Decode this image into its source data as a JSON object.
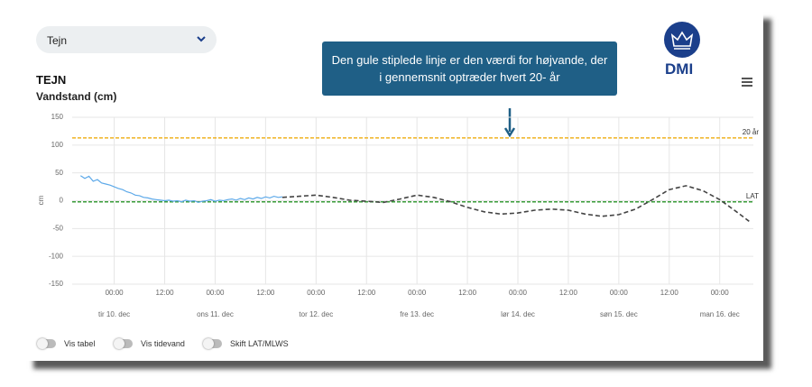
{
  "dropdown": {
    "label": "Tejn"
  },
  "station": "TEJN",
  "tooltip": "Den gule stiplede linje er den værdi for højvande, der i gennemsnit optræder hvert 20- år",
  "logo": "DMI",
  "toggles": [
    "Vis tabel",
    "Vis tidevand",
    "Skift LAT/MLWS"
  ],
  "chart_data": {
    "type": "line",
    "title": "Vandstand (cm)",
    "y_label": "cm",
    "xlim": [
      -10,
      152
    ],
    "ylim": [
      -150,
      150
    ],
    "yticks": [
      -150,
      -100,
      -50,
      0,
      50,
      100,
      150
    ],
    "xticks": [
      {
        "value": 0,
        "label": "00:00"
      },
      {
        "value": 12,
        "label": "12:00"
      },
      {
        "value": 24,
        "label": "00:00"
      },
      {
        "value": 36,
        "label": "12:00"
      },
      {
        "value": 48,
        "label": "00:00"
      },
      {
        "value": 60,
        "label": "12:00"
      },
      {
        "value": 72,
        "label": "00:00"
      },
      {
        "value": 84,
        "label": "12:00"
      },
      {
        "value": 96,
        "label": "00:00"
      },
      {
        "value": 108,
        "label": "12:00"
      },
      {
        "value": 120,
        "label": "00:00"
      },
      {
        "value": 132,
        "label": "12:00"
      },
      {
        "value": 144,
        "label": "00:00"
      }
    ],
    "day_labels": [
      {
        "value": 0,
        "label": "tir 10. dec"
      },
      {
        "value": 24,
        "label": "ons 11. dec"
      },
      {
        "value": 48,
        "label": "tor 12. dec"
      },
      {
        "value": 72,
        "label": "fre 13. dec"
      },
      {
        "value": 96,
        "label": "lør 14. dec"
      },
      {
        "value": 120,
        "label": "søn 15. dec"
      },
      {
        "value": 144,
        "label": "man 16. dec"
      }
    ],
    "grid": true,
    "reference_lines": [
      {
        "label": "20 år",
        "value": 113,
        "color": "#f0b323"
      },
      {
        "label": "LAT",
        "value": -2,
        "color": "#3a9d3a"
      }
    ],
    "series": [
      {
        "color": "#5da9e9",
        "style": "solid",
        "x": [
          -8,
          -7,
          -6,
          -5,
          -4,
          -3,
          -2,
          -1,
          0,
          1,
          2,
          3,
          4,
          5,
          6,
          7,
          8,
          9,
          10,
          11,
          12,
          13,
          14,
          15,
          16,
          17,
          18,
          19,
          20,
          21,
          22,
          23,
          24,
          25,
          26,
          27,
          28,
          29,
          30,
          31,
          32,
          33,
          34,
          35,
          36,
          37,
          38,
          39,
          40
        ],
        "values": [
          45,
          40,
          44,
          35,
          38,
          32,
          30,
          28,
          25,
          22,
          20,
          16,
          14,
          10,
          9,
          6,
          5,
          3,
          2,
          1,
          0,
          1,
          -1,
          0,
          -2,
          1,
          -1,
          0,
          -3,
          -1,
          0,
          2,
          -1,
          1,
          0,
          2,
          3,
          1,
          4,
          2,
          5,
          3,
          6,
          4,
          7,
          5,
          8,
          6,
          7
        ]
      },
      {
        "color": "#444444",
        "style": "dashed",
        "x": [
          40,
          44,
          48,
          52,
          56,
          60,
          64,
          68,
          72,
          76,
          80,
          84,
          88,
          92,
          96,
          100,
          104,
          108,
          112,
          116,
          120,
          124,
          128,
          132,
          136,
          140,
          144,
          148,
          151
        ],
        "values": [
          6,
          8,
          10,
          6,
          1,
          -1,
          -3,
          3,
          10,
          6,
          -2,
          -12,
          -20,
          -24,
          -22,
          -17,
          -15,
          -17,
          -24,
          -28,
          -25,
          -15,
          2,
          20,
          27,
          18,
          2,
          -20,
          -37
        ]
      }
    ]
  }
}
